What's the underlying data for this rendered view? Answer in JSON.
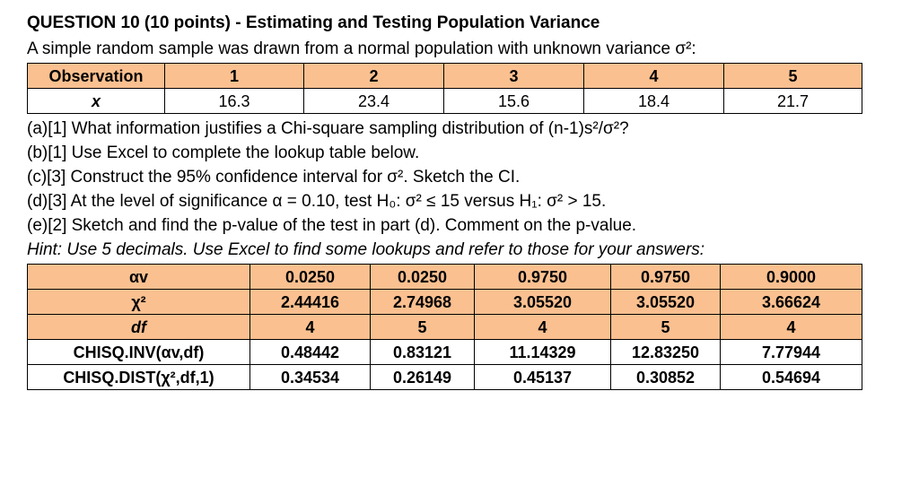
{
  "page": {
    "title": "QUESTION 10 (10 points) - Estimating and Testing Population Variance",
    "intro": "A simple random sample was drawn from a normal population with unknown variance σ²:",
    "questions": [
      "(a)[1] What information justifies a Chi-square sampling distribution of (n-1)s²/σ²?",
      "(b)[1] Use Excel to complete the lookup table below.",
      "(c)[3] Construct the 95% confidence interval for σ². Sketch the CI.",
      "(d)[3] At the level of significance α = 0.10, test H₀: σ² ≤ 15 versus H₁: σ² > 15.",
      "(e)[2] Sketch and find the p-value of the test in part (d). Comment on the p-value."
    ],
    "hint": "Hint: Use 5 decimals. Use Excel to find some lookups and refer to those for your answers:"
  },
  "sample_table": {
    "rows": [
      {
        "shaded": true,
        "bold": true,
        "label_italic": false,
        "cells": [
          "Observation",
          "1",
          "2",
          "3",
          "4",
          "5"
        ]
      },
      {
        "shaded": false,
        "bold": false,
        "label_italic": true,
        "cells": [
          "x",
          "16.3",
          "23.4",
          "15.6",
          "18.4",
          "21.7"
        ]
      }
    ]
  },
  "lookup_table": {
    "rows": [
      {
        "shaded": true,
        "bold": true,
        "label_italic": false,
        "cells": [
          "αv",
          "0.0250",
          "0.0250",
          "0.9750",
          "0.9750",
          "0.9000"
        ]
      },
      {
        "shaded": true,
        "bold": true,
        "label_italic": false,
        "cells": [
          "χ²",
          "2.44416",
          "2.74968",
          "3.05520",
          "3.05520",
          "3.66624"
        ]
      },
      {
        "shaded": true,
        "bold": true,
        "label_italic": true,
        "cells": [
          "df",
          "4",
          "5",
          "4",
          "5",
          "4"
        ]
      },
      {
        "shaded": false,
        "bold": true,
        "label_italic": false,
        "cells": [
          "CHISQ.INV(αv,df)",
          "0.48442",
          "0.83121",
          "11.14329",
          "12.83250",
          "7.77944"
        ]
      },
      {
        "shaded": false,
        "bold": true,
        "label_italic": false,
        "cells": [
          "CHISQ.DIST(χ²,df,1)",
          "0.34534",
          "0.26149",
          "0.45137",
          "0.30852",
          "0.54694"
        ]
      }
    ]
  },
  "colors": {
    "table_shade": "#FAC090"
  }
}
